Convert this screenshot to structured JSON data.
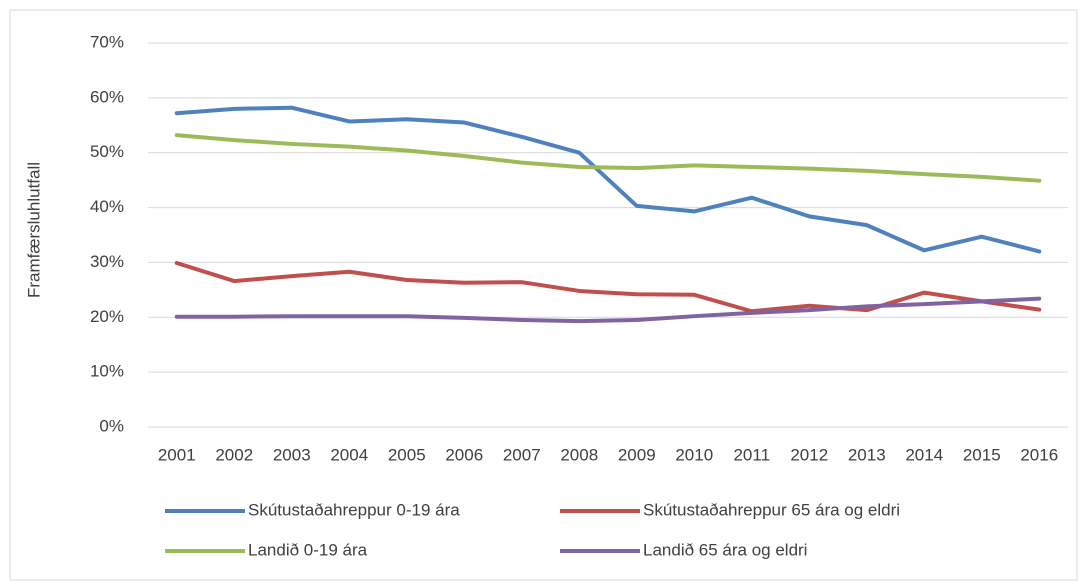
{
  "chart_data": {
    "type": "line",
    "y_label": "Framfærsluhlutfall",
    "categories": [
      "2001",
      "2002",
      "2003",
      "2004",
      "2005",
      "2006",
      "2007",
      "2008",
      "2009",
      "2010",
      "2011",
      "2012",
      "2013",
      "2014",
      "2015",
      "2016"
    ],
    "series": [
      {
        "name": "Skútustaðahreppur 0-19 ára",
        "color": "#4f81bd",
        "values": [
          57.2,
          58.0,
          58.2,
          55.7,
          56.1,
          55.5,
          52.9,
          50.0,
          40.3,
          39.3,
          41.8,
          38.4,
          36.8,
          32.2,
          34.7,
          32.0
        ]
      },
      {
        "name": "Skútustaðahreppur 65 ára og eldri",
        "color": "#c0504d",
        "values": [
          29.9,
          26.6,
          27.5,
          28.3,
          26.8,
          26.3,
          26.4,
          24.8,
          24.2,
          24.1,
          21.1,
          22.1,
          21.3,
          24.5,
          22.9,
          21.4
        ]
      },
      {
        "name": "Landið 0-19 ára",
        "color": "#9bbb59",
        "values": [
          53.2,
          52.3,
          51.6,
          51.1,
          50.4,
          49.4,
          48.2,
          47.4,
          47.2,
          47.7,
          47.4,
          47.1,
          46.7,
          46.1,
          45.6,
          44.9
        ]
      },
      {
        "name": "Landið 65 ára og eldri",
        "color": "#8064a2",
        "values": [
          20.1,
          20.1,
          20.2,
          20.2,
          20.2,
          19.9,
          19.5,
          19.3,
          19.5,
          20.2,
          20.8,
          21.3,
          22.0,
          22.4,
          22.9,
          23.4
        ]
      }
    ],
    "ylim": [
      0,
      70
    ],
    "yticks": [
      {
        "value": 0,
        "label": "0%"
      },
      {
        "value": 10,
        "label": "10%"
      },
      {
        "value": 20,
        "label": "20%"
      },
      {
        "value": 30,
        "label": "30%"
      },
      {
        "value": 40,
        "label": "40%"
      },
      {
        "value": 50,
        "label": "50%"
      },
      {
        "value": 60,
        "label": "60%"
      },
      {
        "value": 70,
        "label": "70%"
      }
    ],
    "grid": true,
    "legend": "bottom"
  }
}
